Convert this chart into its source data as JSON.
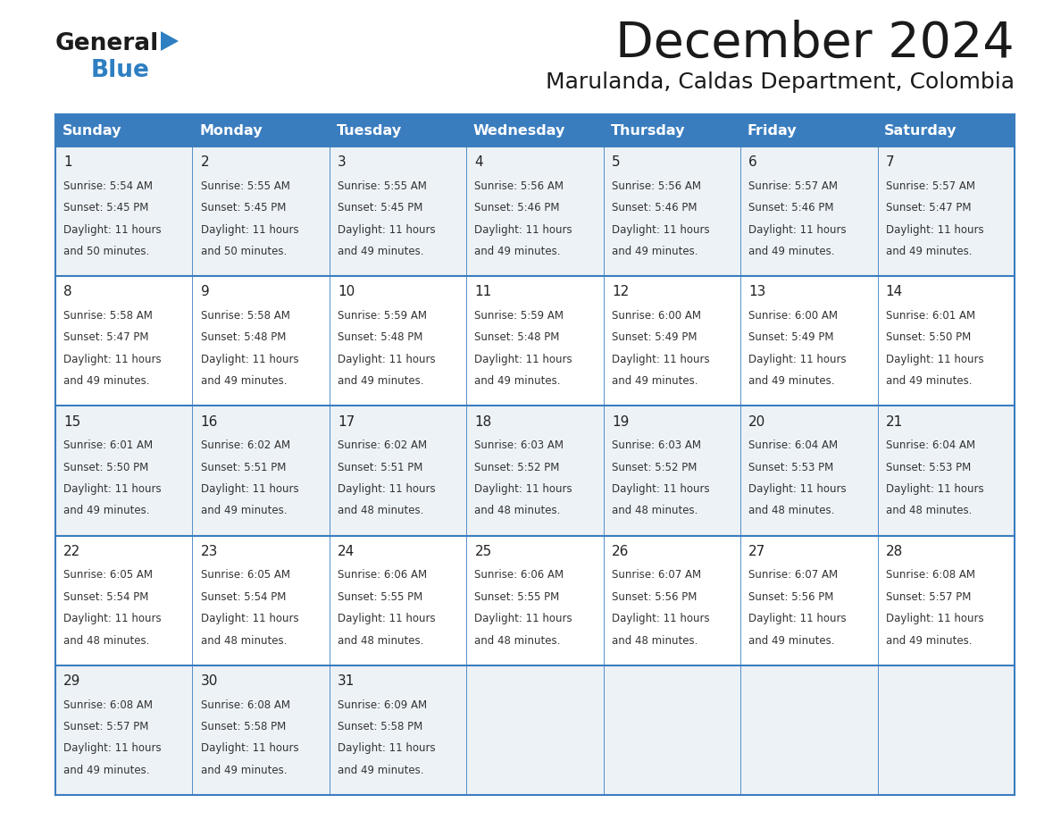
{
  "title": "December 2024",
  "subtitle": "Marulanda, Caldas Department, Colombia",
  "days_of_week": [
    "Sunday",
    "Monday",
    "Tuesday",
    "Wednesday",
    "Thursday",
    "Friday",
    "Saturday"
  ],
  "header_bg": "#3a7dbf",
  "header_text": "#ffffff",
  "row_bg_light": "#edf2f7",
  "row_bg_white": "#ffffff",
  "cell_border": "#3a7dbf",
  "text_color": "#333333",
  "day_num_color": "#222222",
  "title_color": "#1a1a1a",
  "calendar": [
    [
      {
        "day": 1,
        "sunrise": "5:54 AM",
        "sunset": "5:45 PM",
        "daylight": "11 hours and 50 minutes."
      },
      {
        "day": 2,
        "sunrise": "5:55 AM",
        "sunset": "5:45 PM",
        "daylight": "11 hours and 50 minutes."
      },
      {
        "day": 3,
        "sunrise": "5:55 AM",
        "sunset": "5:45 PM",
        "daylight": "11 hours and 49 minutes."
      },
      {
        "day": 4,
        "sunrise": "5:56 AM",
        "sunset": "5:46 PM",
        "daylight": "11 hours and 49 minutes."
      },
      {
        "day": 5,
        "sunrise": "5:56 AM",
        "sunset": "5:46 PM",
        "daylight": "11 hours and 49 minutes."
      },
      {
        "day": 6,
        "sunrise": "5:57 AM",
        "sunset": "5:46 PM",
        "daylight": "11 hours and 49 minutes."
      },
      {
        "day": 7,
        "sunrise": "5:57 AM",
        "sunset": "5:47 PM",
        "daylight": "11 hours and 49 minutes."
      }
    ],
    [
      {
        "day": 8,
        "sunrise": "5:58 AM",
        "sunset": "5:47 PM",
        "daylight": "11 hours and 49 minutes."
      },
      {
        "day": 9,
        "sunrise": "5:58 AM",
        "sunset": "5:48 PM",
        "daylight": "11 hours and 49 minutes."
      },
      {
        "day": 10,
        "sunrise": "5:59 AM",
        "sunset": "5:48 PM",
        "daylight": "11 hours and 49 minutes."
      },
      {
        "day": 11,
        "sunrise": "5:59 AM",
        "sunset": "5:48 PM",
        "daylight": "11 hours and 49 minutes."
      },
      {
        "day": 12,
        "sunrise": "6:00 AM",
        "sunset": "5:49 PM",
        "daylight": "11 hours and 49 minutes."
      },
      {
        "day": 13,
        "sunrise": "6:00 AM",
        "sunset": "5:49 PM",
        "daylight": "11 hours and 49 minutes."
      },
      {
        "day": 14,
        "sunrise": "6:01 AM",
        "sunset": "5:50 PM",
        "daylight": "11 hours and 49 minutes."
      }
    ],
    [
      {
        "day": 15,
        "sunrise": "6:01 AM",
        "sunset": "5:50 PM",
        "daylight": "11 hours and 49 minutes."
      },
      {
        "day": 16,
        "sunrise": "6:02 AM",
        "sunset": "5:51 PM",
        "daylight": "11 hours and 49 minutes."
      },
      {
        "day": 17,
        "sunrise": "6:02 AM",
        "sunset": "5:51 PM",
        "daylight": "11 hours and 48 minutes."
      },
      {
        "day": 18,
        "sunrise": "6:03 AM",
        "sunset": "5:52 PM",
        "daylight": "11 hours and 48 minutes."
      },
      {
        "day": 19,
        "sunrise": "6:03 AM",
        "sunset": "5:52 PM",
        "daylight": "11 hours and 48 minutes."
      },
      {
        "day": 20,
        "sunrise": "6:04 AM",
        "sunset": "5:53 PM",
        "daylight": "11 hours and 48 minutes."
      },
      {
        "day": 21,
        "sunrise": "6:04 AM",
        "sunset": "5:53 PM",
        "daylight": "11 hours and 48 minutes."
      }
    ],
    [
      {
        "day": 22,
        "sunrise": "6:05 AM",
        "sunset": "5:54 PM",
        "daylight": "11 hours and 48 minutes."
      },
      {
        "day": 23,
        "sunrise": "6:05 AM",
        "sunset": "5:54 PM",
        "daylight": "11 hours and 48 minutes."
      },
      {
        "day": 24,
        "sunrise": "6:06 AM",
        "sunset": "5:55 PM",
        "daylight": "11 hours and 48 minutes."
      },
      {
        "day": 25,
        "sunrise": "6:06 AM",
        "sunset": "5:55 PM",
        "daylight": "11 hours and 48 minutes."
      },
      {
        "day": 26,
        "sunrise": "6:07 AM",
        "sunset": "5:56 PM",
        "daylight": "11 hours and 48 minutes."
      },
      {
        "day": 27,
        "sunrise": "6:07 AM",
        "sunset": "5:56 PM",
        "daylight": "11 hours and 49 minutes."
      },
      {
        "day": 28,
        "sunrise": "6:08 AM",
        "sunset": "5:57 PM",
        "daylight": "11 hours and 49 minutes."
      }
    ],
    [
      {
        "day": 29,
        "sunrise": "6:08 AM",
        "sunset": "5:57 PM",
        "daylight": "11 hours and 49 minutes."
      },
      {
        "day": 30,
        "sunrise": "6:08 AM",
        "sunset": "5:58 PM",
        "daylight": "11 hours and 49 minutes."
      },
      {
        "day": 31,
        "sunrise": "6:09 AM",
        "sunset": "5:58 PM",
        "daylight": "11 hours and 49 minutes."
      },
      null,
      null,
      null,
      null
    ]
  ]
}
